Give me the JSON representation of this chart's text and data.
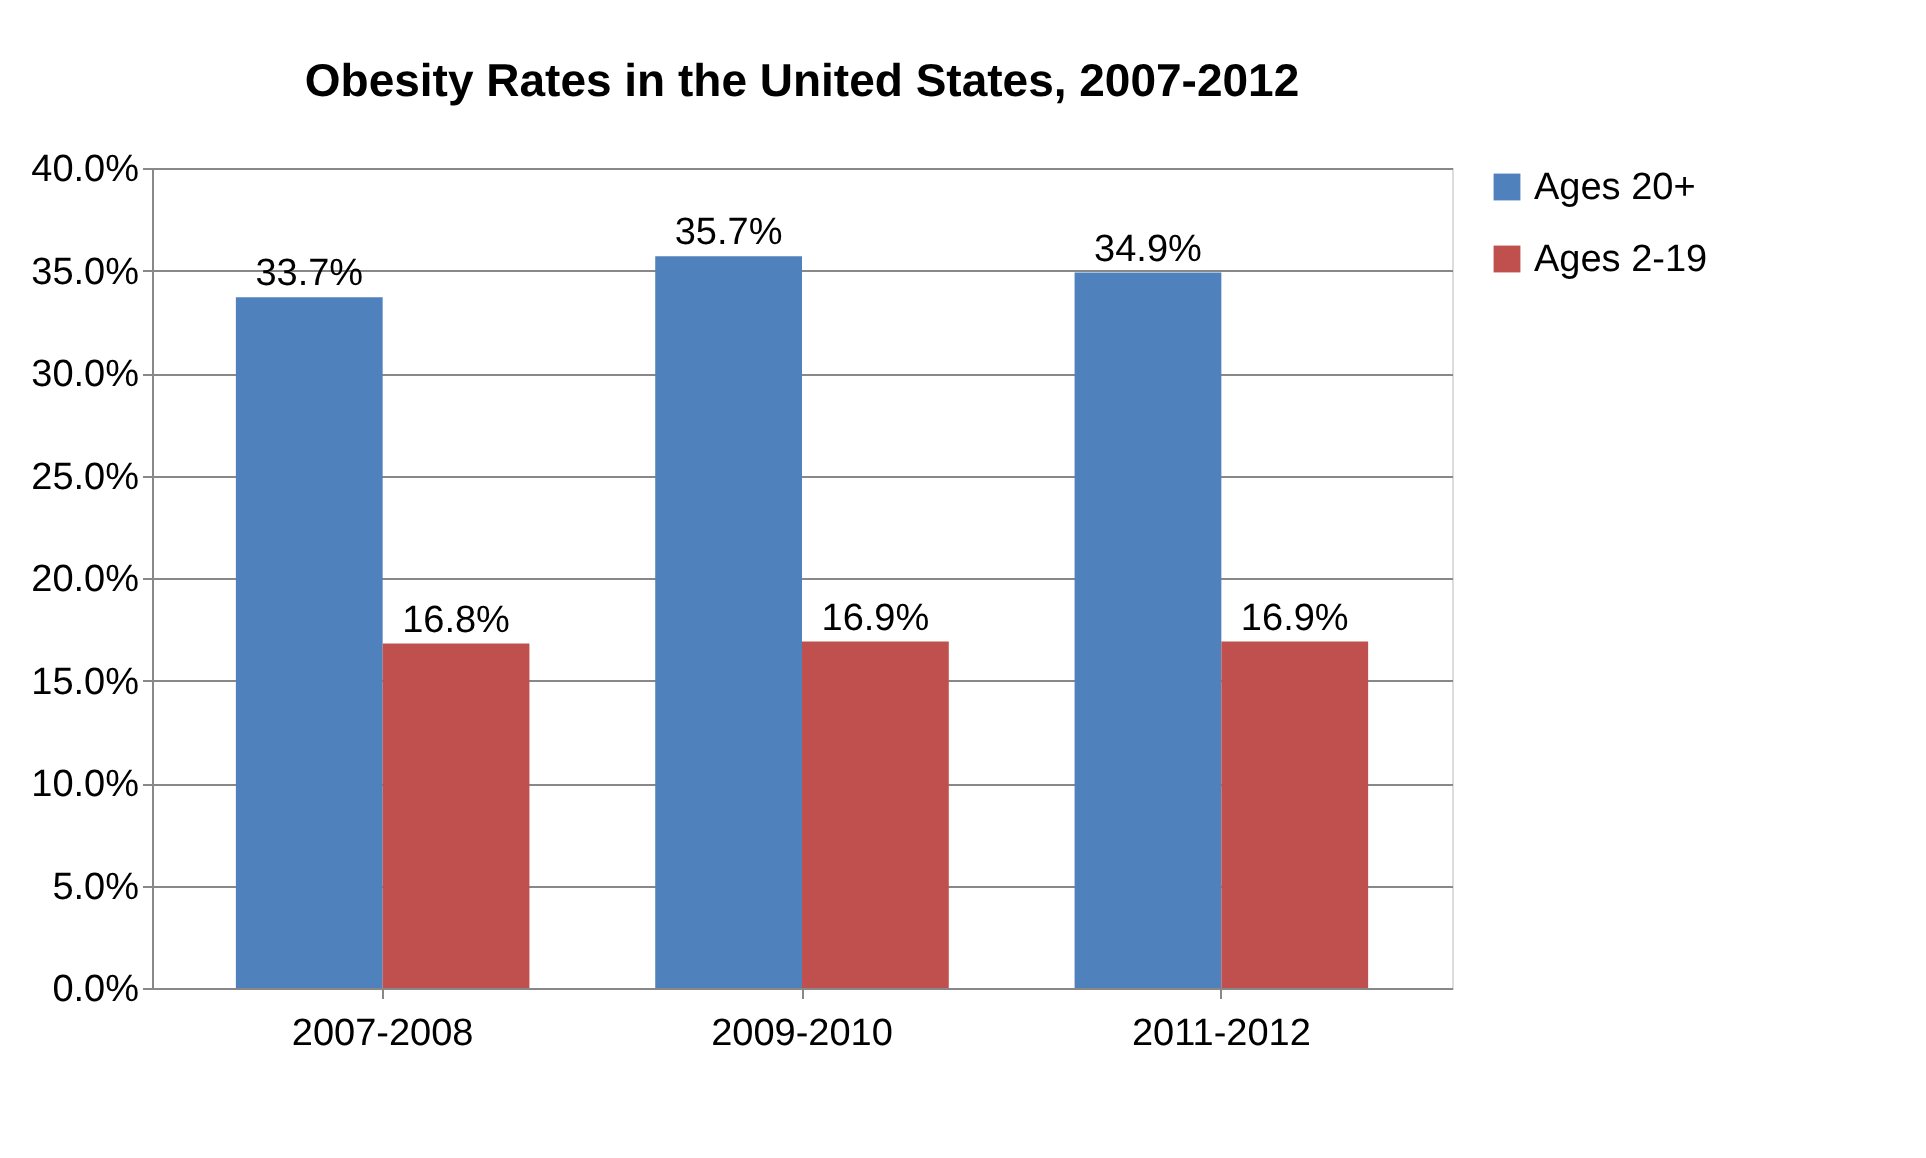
{
  "chart_data": {
    "type": "bar",
    "title": "Obesity Rates in the United States, 2007-2012",
    "categories": [
      "2007-2008",
      "2009-2010",
      "2011-2012"
    ],
    "series": [
      {
        "name": "Ages 20+",
        "color": "#4f81bd",
        "values": [
          33.7,
          35.7,
          34.9
        ],
        "value_labels": [
          "33.7%",
          "35.7%",
          "34.9%"
        ]
      },
      {
        "name": "Ages 2-19",
        "color": "#c0504d",
        "values": [
          16.8,
          16.9,
          16.9
        ],
        "value_labels": [
          "16.8%",
          "16.9%",
          "16.9%"
        ]
      }
    ],
    "ylim": [
      0,
      40
    ],
    "yticks": [
      {
        "value": 0,
        "label": "0.0%"
      },
      {
        "value": 5,
        "label": "5.0%"
      },
      {
        "value": 10,
        "label": "10.0%"
      },
      {
        "value": 15,
        "label": "15.0%"
      },
      {
        "value": 20,
        "label": "20.0%"
      },
      {
        "value": 25,
        "label": "25.0%"
      },
      {
        "value": 30,
        "label": "30.0%"
      },
      {
        "value": 35,
        "label": "35.0%"
      },
      {
        "value": 40,
        "label": "40.0%"
      }
    ],
    "grid": "y",
    "legend": "right"
  }
}
